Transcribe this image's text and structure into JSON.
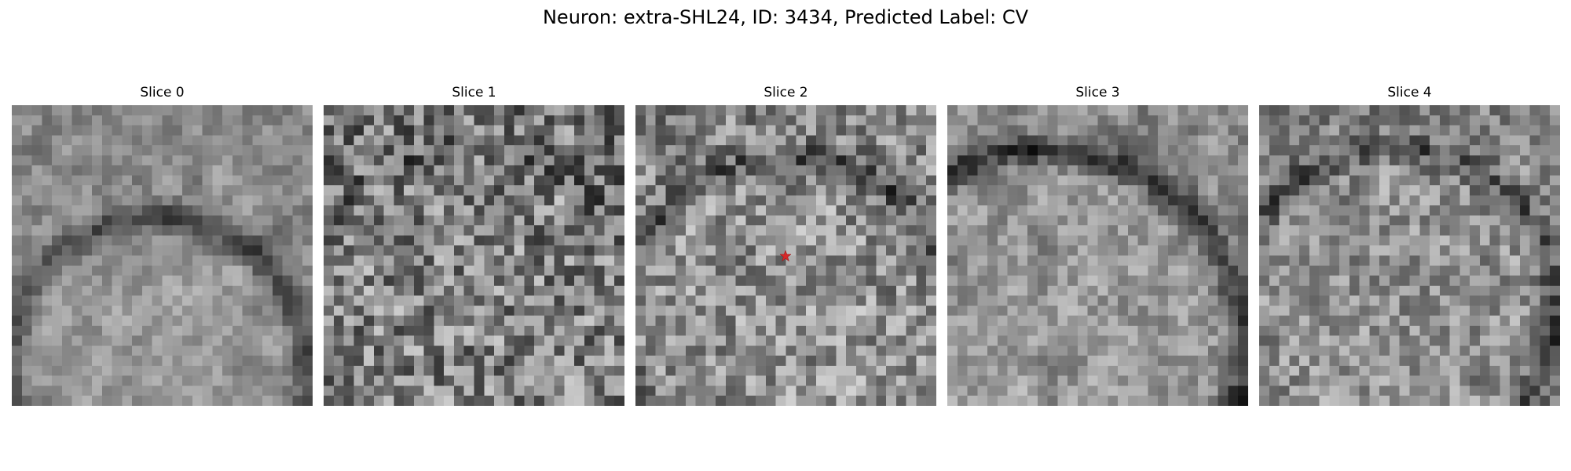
{
  "figure": {
    "title": "Neuron: extra-SHL24, ID: 3434, Predicted Label: CV"
  },
  "slices": [
    {
      "label": "Slice 0"
    },
    {
      "label": "Slice 1"
    },
    {
      "label": "Slice 2"
    },
    {
      "label": "Slice 3"
    },
    {
      "label": "Slice 4"
    }
  ],
  "marker": {
    "slice_index": 2,
    "shape": "star",
    "color": "#d62728"
  },
  "colormap": "gray"
}
